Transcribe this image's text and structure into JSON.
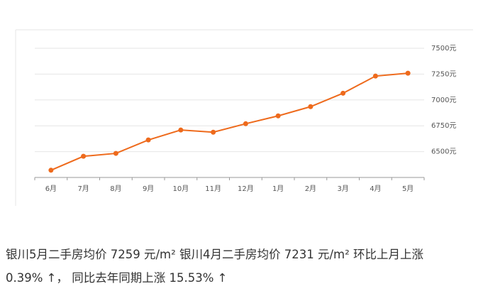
{
  "chart_data": {
    "type": "line",
    "categories": [
      "6月",
      "7月",
      "8月",
      "9月",
      "10月",
      "11月",
      "12月",
      "1月",
      "2月",
      "3月",
      "4月",
      "5月"
    ],
    "values": [
      6320,
      6455,
      6483,
      6613,
      6709,
      6688,
      6770,
      6846,
      6935,
      7065,
      7231,
      7259
    ],
    "color": "#ee6a1c",
    "ylim": [
      6250,
      7500
    ],
    "yticks": [
      {
        "value": 6500,
        "label": "6500元"
      },
      {
        "value": 6750,
        "label": "6750元"
      },
      {
        "value": 7000,
        "label": "7000元"
      },
      {
        "value": 7250,
        "label": "7250元"
      },
      {
        "value": 7500,
        "label": "7500元"
      }
    ],
    "grid": true
  },
  "text": {
    "line1": "银川5月二手房均价 7259 元/m² 银川4月二手房均价 7231 元/m² 环比上月上涨",
    "line2": "0.39% ↑， 同比去年同期上涨 15.53% ↑"
  }
}
